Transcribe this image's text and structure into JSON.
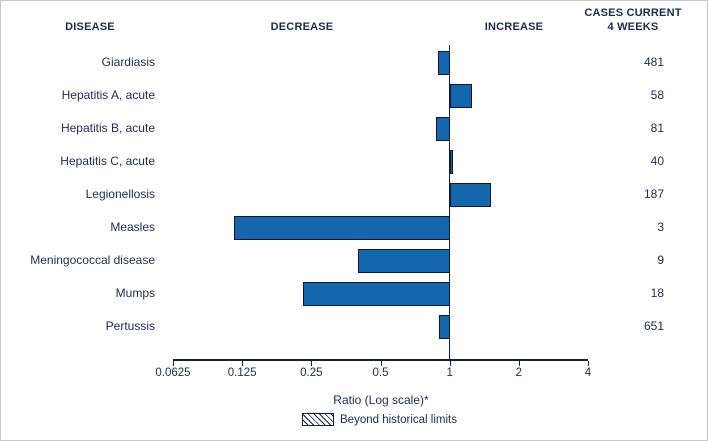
{
  "header": {
    "disease": "DISEASE",
    "decrease": "DECREASE",
    "increase": "INCREASE",
    "cases_line1": "CASES CURRENT",
    "cases_line2": "4 WEEKS"
  },
  "axis": {
    "label": "Ratio (Log scale)*",
    "tick_values": [
      0.0625,
      0.125,
      0.25,
      0.5,
      1,
      2,
      4
    ],
    "tick_labels": [
      "0.0625",
      "0.125",
      "0.25",
      "0.5",
      "1",
      "2",
      "4"
    ]
  },
  "legend": {
    "label": "Beyond historical limits"
  },
  "colors": {
    "bar_fill": "#1467ad",
    "bar_border": "#0a153a",
    "text": "#1e2a52"
  },
  "chart_data": {
    "type": "bar",
    "orientation": "horizontal",
    "scale": "log",
    "xlim": [
      0.0625,
      4
    ],
    "xlabel": "Ratio (Log scale)*",
    "baseline": 1,
    "categories": [
      "Giardiasis",
      "Hepatitis A, acute",
      "Hepatitis B, acute",
      "Hepatitis C, acute",
      "Legionellosis",
      "Measles",
      "Meningococcal disease",
      "Mumps",
      "Pertussis"
    ],
    "ratios": [
      0.89,
      1.25,
      0.87,
      1.03,
      1.52,
      0.115,
      0.4,
      0.23,
      0.9
    ],
    "cases_current_4_weeks": [
      481,
      58,
      81,
      40,
      187,
      3,
      9,
      18,
      651
    ],
    "beyond_historical_limits": [
      false,
      false,
      false,
      false,
      false,
      false,
      false,
      false,
      false
    ],
    "legend": "Beyond historical limits"
  }
}
